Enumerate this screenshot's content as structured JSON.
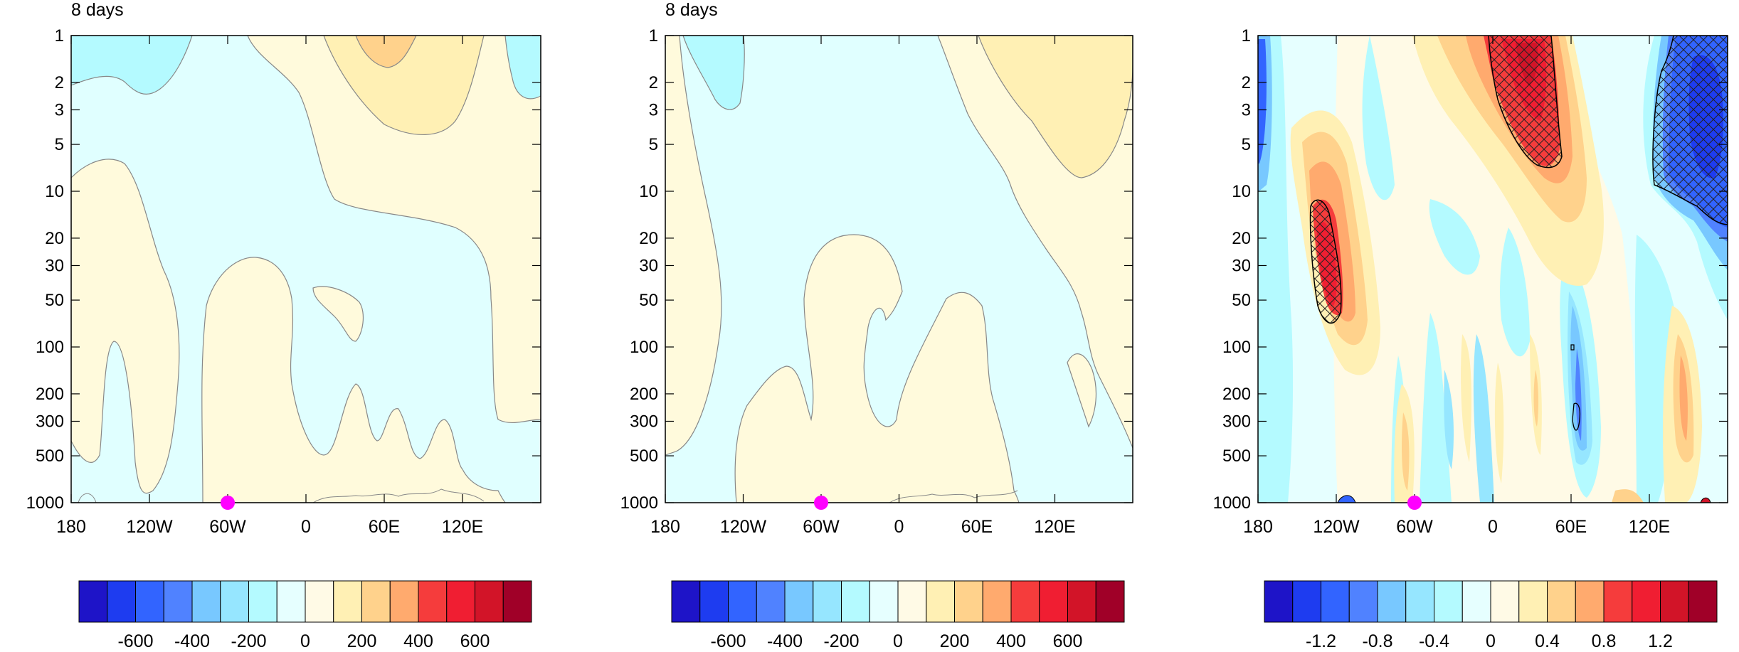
{
  "chart_data": [
    {
      "type": "heatmap",
      "title": "8 days",
      "x_tick_labels": [
        "180",
        "120W",
        "60W",
        "0",
        "60E",
        "120E"
      ],
      "y_tick_labels": [
        "1",
        "2",
        "3",
        "5",
        "10",
        "20",
        "30",
        "50",
        "100",
        "200",
        "300",
        "500",
        "1000"
      ],
      "y_scale": "log",
      "y_reversed": true,
      "colorbar_labels": [
        "-600",
        "-400",
        "-200",
        "0",
        "200",
        "400",
        "600"
      ],
      "marker": {
        "x_label": "60W",
        "color": "#ff00ff"
      }
    },
    {
      "type": "heatmap",
      "title": "8 days",
      "x_tick_labels": [
        "180",
        "120W",
        "60W",
        "0",
        "60E",
        "120E"
      ],
      "y_tick_labels": [
        "1",
        "2",
        "3",
        "5",
        "10",
        "20",
        "30",
        "50",
        "100",
        "200",
        "300",
        "500",
        "1000"
      ],
      "y_scale": "log",
      "y_reversed": true,
      "colorbar_labels": [
        "-600",
        "-400",
        "-200",
        "0",
        "200",
        "400",
        "600"
      ],
      "marker": {
        "x_label": "60W",
        "color": "#ff00ff"
      }
    },
    {
      "type": "heatmap",
      "title": "",
      "x_tick_labels": [
        "180",
        "120W",
        "60W",
        "0",
        "60E",
        "120E"
      ],
      "y_tick_labels": [
        "1",
        "2",
        "3",
        "5",
        "10",
        "20",
        "30",
        "50",
        "100",
        "200",
        "300",
        "500",
        "1000"
      ],
      "y_scale": "log",
      "y_reversed": true,
      "colorbar_labels": [
        "-1.2",
        "-0.8",
        "-0.4",
        "0",
        "0.4",
        "0.8",
        "1.2"
      ],
      "marker": {
        "x_label": "60W",
        "color": "#ff00ff"
      }
    }
  ],
  "palette": [
    "#2a0bd9",
    "#264dff",
    "#3fa0ff",
    "#72d9ff",
    "#aaf7ff",
    "#e0ffff",
    "#ffffbf",
    "#ffe099",
    "#ffad72",
    "#f76d5e",
    "#d82632",
    "#a50021"
  ],
  "palette_16": [
    "#1e14c8",
    "#1e3cf0",
    "#3264ff",
    "#5082ff",
    "#78c8ff",
    "#96e6ff",
    "#b4faff",
    "#e6ffff",
    "#fffae6",
    "#fff0b4",
    "#ffd28c",
    "#ffaa6e",
    "#f53c3c",
    "#f01e32",
    "#d21428",
    "#a00028"
  ]
}
